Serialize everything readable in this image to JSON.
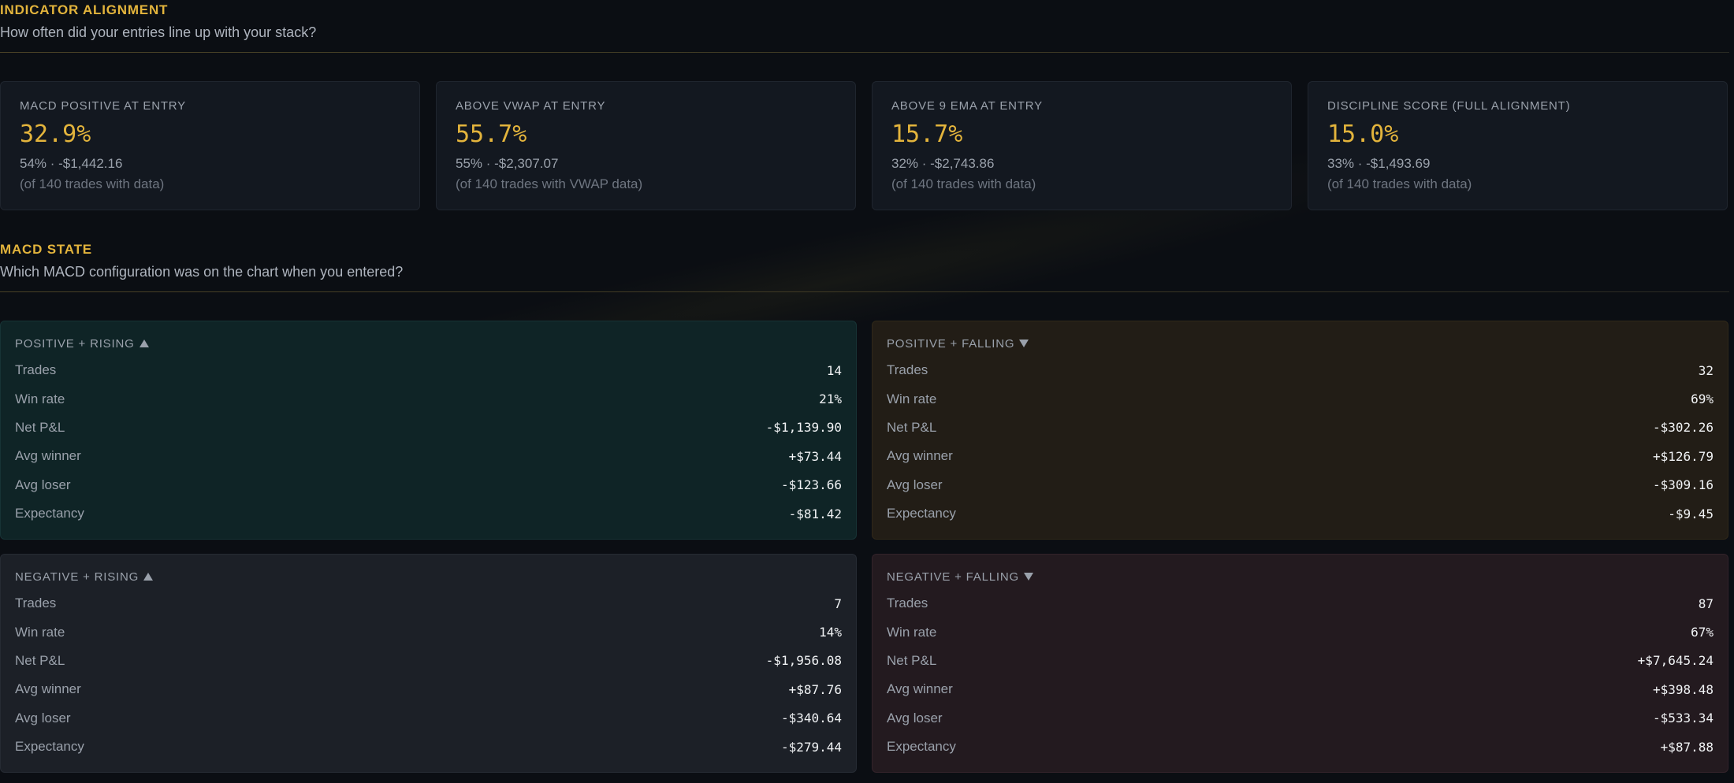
{
  "alignment": {
    "title": "INDICATOR ALIGNMENT",
    "subtitle": "How often did your entries line up with your stack?",
    "cards": [
      {
        "label": "MACD POSITIVE AT ENTRY",
        "value": "32.9%",
        "detail": "54% · -$1,442.16",
        "note": "(of 140 trades with data)"
      },
      {
        "label": "ABOVE VWAP AT ENTRY",
        "value": "55.7%",
        "detail": "55% · -$2,307.07",
        "note": "(of 140 trades with VWAP data)"
      },
      {
        "label": "ABOVE 9 EMA AT ENTRY",
        "value": "15.7%",
        "detail": "32% · -$2,743.86",
        "note": "(of 140 trades with data)"
      },
      {
        "label": "DISCIPLINE SCORE (FULL ALIGNMENT)",
        "value": "15.0%",
        "detail": "33% · -$1,493.69",
        "note": "(of 140 trades with data)"
      }
    ]
  },
  "macd": {
    "title": "MACD STATE",
    "subtitle": "Which MACD configuration was on the chart when you entered?",
    "row_labels": [
      "Trades",
      "Win rate",
      "Net P&L",
      "Avg winner",
      "Avg loser",
      "Expectancy"
    ],
    "cards": [
      {
        "title": "POSITIVE + RISING",
        "values": [
          "14",
          "21%",
          "-$1,139.90",
          "+$73.44",
          "-$123.66",
          "-$81.42"
        ]
      },
      {
        "title": "POSITIVE + FALLING",
        "values": [
          "32",
          "69%",
          "-$302.26",
          "+$126.79",
          "-$309.16",
          "-$9.45"
        ]
      },
      {
        "title": "NEGATIVE + RISING",
        "values": [
          "7",
          "14%",
          "-$1,956.08",
          "+$87.76",
          "-$340.64",
          "-$279.44"
        ]
      },
      {
        "title": "NEGATIVE + FALLING",
        "values": [
          "87",
          "67%",
          "+$7,645.24",
          "+$398.48",
          "-$533.34",
          "+$87.88"
        ]
      }
    ]
  },
  "icons": {
    "rising": "triangle-up-icon",
    "falling": "triangle-down-icon"
  },
  "colors": {
    "accent": "#e3b43c",
    "background": "#0b0e13"
  }
}
